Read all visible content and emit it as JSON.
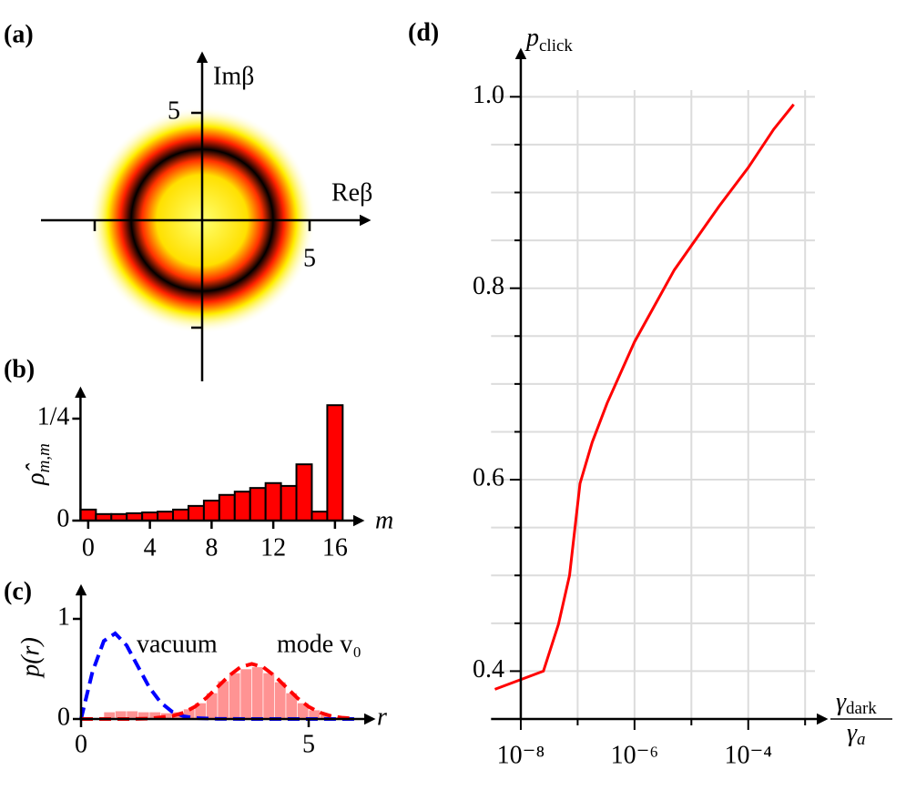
{
  "chart_data": [
    {
      "type": "image",
      "panel_label": "(a)",
      "xlabel": "Reβ",
      "ylabel": "Imβ",
      "xlim": [
        -7.5,
        7.5
      ],
      "ylim": [
        -7.5,
        7.5
      ],
      "xticks": [
        {
          "value": -5,
          "label": null
        },
        5
      ],
      "yticks": [
        {
          "value": -5,
          "label": null
        },
        5
      ],
      "ring_radius": 3.3,
      "colormap": [
        "#ffff70",
        "#ffe000",
        "#ff3000",
        "#000000",
        "#ff2000",
        "#ffee00",
        "#ffffff"
      ]
    },
    {
      "type": "bar",
      "panel_label": "(b)",
      "xlabel": "m",
      "ylabel": {
        "main": "ρ̂",
        "sub": "m,m"
      },
      "x": [
        0,
        1,
        2,
        3,
        4,
        5,
        6,
        7,
        8,
        9,
        10,
        11,
        12,
        13,
        14,
        15,
        16
      ],
      "values": [
        0.027,
        0.016,
        0.016,
        0.018,
        0.02,
        0.022,
        0.027,
        0.036,
        0.049,
        0.063,
        0.071,
        0.08,
        0.092,
        0.085,
        0.138,
        0.022,
        0.283
      ],
      "color": "#ff0000",
      "edgecolor": "#000000",
      "xlim": [
        -0.5,
        17.3
      ],
      "ylim": [
        0,
        0.31
      ],
      "xticks": [
        0,
        4,
        8,
        12,
        16
      ],
      "yticks": [
        0,
        {
          "value": 0.25,
          "label": "1/4"
        }
      ]
    },
    {
      "type": "histogram",
      "panel_label": "(c)",
      "xlabel": "r",
      "ylabel": "p(r)",
      "bins": [
        0.5,
        0.75,
        1.0,
        1.25,
        1.5,
        1.75,
        2.0,
        2.25,
        2.5,
        2.75,
        3.0,
        3.25,
        3.5,
        3.75,
        4.0,
        4.25,
        4.5,
        4.75,
        5.0,
        5.25,
        5.5,
        5.75,
        6.0
      ],
      "counts": [
        0.07,
        0.08,
        0.08,
        0.07,
        0.07,
        0.06,
        0.07,
        0.1,
        0.16,
        0.26,
        0.38,
        0.46,
        0.5,
        0.52,
        0.46,
        0.37,
        0.26,
        0.16,
        0.09,
        0.04,
        0.02,
        0.01
      ],
      "hist_color": "#ff8080",
      "series": [
        {
          "name": "vacuum",
          "color": "#0000ff",
          "x": [
            0,
            0.25,
            0.5,
            0.75,
            1.0,
            1.25,
            1.5,
            1.75,
            2.0,
            2.25,
            2.5,
            3.0,
            4.0,
            5.0,
            6.0
          ],
          "values": [
            0,
            0.47,
            0.779,
            0.855,
            0.736,
            0.524,
            0.316,
            0.164,
            0.073,
            0.028,
            0.01,
            0.001,
            0,
            0,
            0
          ]
        },
        {
          "name": "mode v₀",
          "color": "#ff0000",
          "x": [
            0,
            1.0,
            1.5,
            2.0,
            2.25,
            2.5,
            2.75,
            3.0,
            3.25,
            3.5,
            3.75,
            4.0,
            4.25,
            4.5,
            4.75,
            5.0,
            5.25,
            5.5,
            5.75,
            6.0
          ],
          "values": [
            0,
            0,
            0.004,
            0.029,
            0.063,
            0.122,
            0.21,
            0.32,
            0.432,
            0.518,
            0.55,
            0.518,
            0.432,
            0.32,
            0.21,
            0.122,
            0.063,
            0.029,
            0.012,
            0.004
          ]
        }
      ],
      "xlim": [
        0,
        6.3
      ],
      "ylim": [
        0,
        1.27
      ],
      "xticks": [
        0,
        5
      ],
      "yticks": [
        0,
        1
      ]
    },
    {
      "type": "line",
      "panel_label": "(d)",
      "xlabel": {
        "numerator": {
          "main": "γ",
          "sub": "dark"
        },
        "denominator": {
          "main": "γ",
          "sub": "a"
        }
      },
      "ylabel": {
        "main": "p",
        "sub": "click"
      },
      "xscale": "log",
      "x": [
        3.5e-09,
        2.5e-08,
        4.6e-08,
        7.2e-08,
        1.1e-07,
        1.8e-07,
        3.3e-07,
        1e-06,
        5e-06,
        3.1e-05,
        0.0001,
        0.00028,
        0.00063
      ],
      "values": [
        0.381,
        0.4,
        0.449,
        0.5,
        0.596,
        0.639,
        0.68,
        0.744,
        0.819,
        0.886,
        0.926,
        0.966,
        0.992
      ],
      "color": "#ff0000",
      "grid": true,
      "xlim": [
        3e-09,
        0.002
      ],
      "ylim": [
        0.35,
        1.045
      ],
      "xticks": [
        {
          "value": 1e-08,
          "label": "10⁻⁸"
        },
        {
          "value": 1e-06,
          "label": "10⁻⁶"
        },
        {
          "value": 0.0001,
          "label": "10⁻⁴"
        }
      ],
      "xminor": [
        1e-07,
        1e-05,
        0.001
      ],
      "yticks": [
        0.4,
        0.6,
        0.8,
        {
          "value": 1,
          "label": "1.0"
        }
      ],
      "yminor": [
        0.45,
        0.5,
        0.55,
        0.65,
        0.7,
        0.75,
        0.85,
        0.9,
        0.95
      ]
    }
  ]
}
